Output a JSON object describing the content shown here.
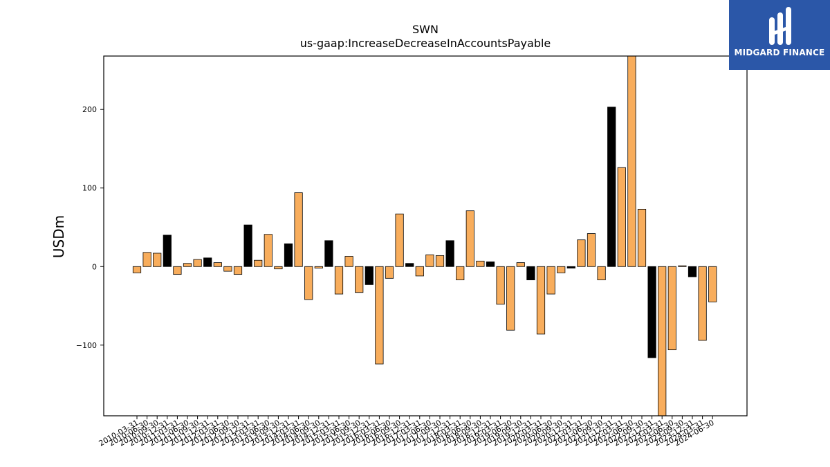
{
  "brand": {
    "logo_text": "MIDGARD FINANCE",
    "logo_color": "#2b57a8"
  },
  "chart_data": {
    "type": "bar",
    "title": "SWN",
    "subtitle": "us-gaap:IncreaseDecreaseInAccountsPayable",
    "xlabel": "",
    "ylabel": "USDm",
    "ylim": [
      -190,
      268
    ],
    "yticks": [
      -100,
      0,
      100,
      200
    ],
    "ytick_labels": [
      "−100",
      "0",
      "100",
      "200"
    ],
    "grid": false,
    "colors": {
      "q4": "#000000",
      "other": "#f8ad5c",
      "edge": "#000000"
    },
    "categories": [
      "2010-03-31",
      "2010-06-30",
      "2010-09-30",
      "2010-12-31",
      "2011-03-31",
      "2011-06-30",
      "2011-09-30",
      "2011-12-31",
      "2012-03-31",
      "2012-06-30",
      "2012-09-30",
      "2012-12-31",
      "2013-03-31",
      "2013-06-30",
      "2013-09-30",
      "2013-12-31",
      "2014-03-31",
      "2014-06-30",
      "2014-09-30",
      "2014-12-31",
      "2015-03-31",
      "2015-06-30",
      "2015-09-30",
      "2015-12-31",
      "2016-03-31",
      "2016-06-30",
      "2016-09-30",
      "2016-12-31",
      "2017-03-31",
      "2017-06-30",
      "2017-09-30",
      "2017-12-31",
      "2018-03-31",
      "2018-06-30",
      "2018-09-30",
      "2018-12-31",
      "2019-03-31",
      "2019-06-30",
      "2019-09-30",
      "2019-12-31",
      "2020-03-31",
      "2020-06-30",
      "2020-09-30",
      "2020-12-31",
      "2021-03-31",
      "2021-06-30",
      "2021-09-30",
      "2021-12-31",
      "2022-03-31",
      "2022-06-30",
      "2022-09-30",
      "2022-12-31",
      "2023-03-31",
      "2023-06-30",
      "2023-09-30",
      "2023-12-31",
      "2024-03-31",
      "2024-06-30"
    ],
    "values": [
      -8,
      18,
      17,
      40,
      -10,
      4,
      9,
      11,
      5,
      -6,
      -10,
      53,
      8,
      41,
      -3,
      29,
      94,
      -42,
      -2,
      33,
      -35,
      13,
      -33,
      -23,
      -124,
      -15,
      67,
      4,
      -12,
      15,
      14,
      33,
      -17,
      71,
      7,
      6,
      -48,
      -81,
      5,
      -17,
      -86,
      -35,
      -8,
      -2,
      34,
      42,
      -17,
      203,
      126,
      270,
      73,
      -116,
      -190,
      -106,
      1,
      -13,
      -94,
      -45
    ]
  }
}
